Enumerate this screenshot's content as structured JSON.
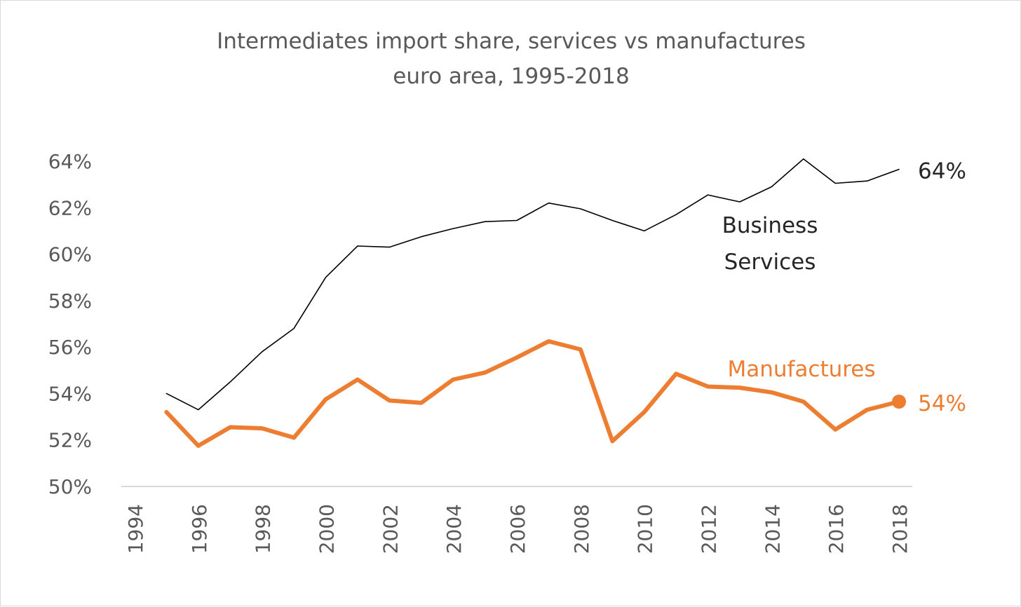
{
  "chart_data": {
    "type": "line",
    "title": "Intermediates import share, services vs manufactures",
    "subtitle": "euro area, 1995-2018",
    "xlabel": "",
    "ylabel": "",
    "xlim": [
      1994,
      2018
    ],
    "ylim": [
      50,
      64
    ],
    "x_ticks": [
      "1994",
      "1996",
      "1998",
      "2000",
      "2002",
      "2004",
      "2006",
      "2008",
      "2010",
      "2012",
      "2014",
      "2016",
      "2018"
    ],
    "y_ticks": [
      "50%",
      "52%",
      "54%",
      "56%",
      "58%",
      "60%",
      "62%",
      "64%"
    ],
    "x": [
      1995,
      1996,
      1997,
      1998,
      1999,
      2000,
      2001,
      2002,
      2003,
      2004,
      2005,
      2006,
      2007,
      2008,
      2009,
      2010,
      2011,
      2012,
      2013,
      2014,
      2015,
      2016,
      2017,
      2018
    ],
    "series": [
      {
        "name": "Business Services",
        "label_lines": [
          "Business",
          "Services"
        ],
        "end_label": "64%",
        "color": "#000000",
        "values": [
          54.0,
          53.3,
          54.5,
          55.8,
          56.8,
          59.0,
          60.35,
          60.3,
          60.75,
          61.1,
          61.4,
          61.45,
          62.2,
          61.95,
          61.45,
          61.0,
          61.7,
          62.55,
          62.25,
          62.9,
          64.1,
          63.05,
          63.15,
          63.65
        ]
      },
      {
        "name": "Manufactures",
        "label_lines": [
          "Manufactures"
        ],
        "end_label": "54%",
        "color": "#ed7d31",
        "values": [
          53.2,
          51.75,
          52.55,
          52.5,
          52.1,
          53.75,
          54.6,
          53.7,
          53.6,
          54.6,
          54.9,
          55.55,
          56.25,
          55.9,
          51.95,
          53.2,
          54.85,
          54.3,
          54.25,
          54.05,
          53.65,
          52.45,
          53.3,
          53.65
        ]
      }
    ],
    "grid": false,
    "legend": "inline labels near series"
  }
}
